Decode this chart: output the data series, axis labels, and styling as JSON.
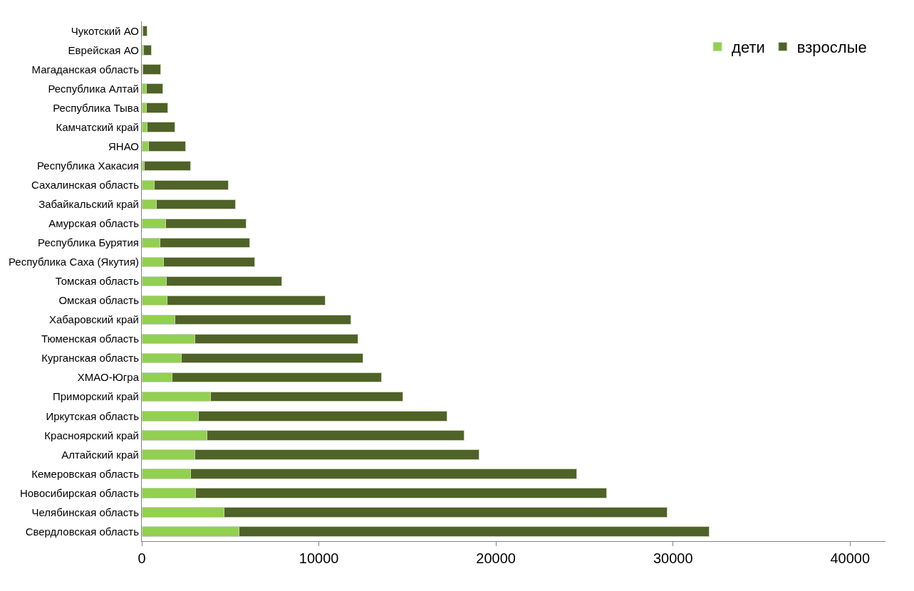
{
  "chart_data": {
    "type": "bar",
    "orientation": "horizontal",
    "stacked": true,
    "categories": [
      "Чукотский АО",
      "Еврейская АО",
      "Магаданская область",
      "Республика Алтай",
      "Республика Тыва",
      "Камчатский край",
      "ЯНАО",
      "Республика Хакасия",
      "Сахалинская область",
      "Забайкальский край",
      "Амурская область",
      "Республика Бурятия",
      "Республика Саха (Якутия)",
      "Томская область",
      "Омская область",
      "Хабаровский край",
      "Тюменская область",
      "Курганская область",
      "ХМАО-Югра",
      "Приморский край",
      "Иркутская область",
      "Красноярский край",
      "Алтайский край",
      "Кемеровская область",
      "Новосибирская область",
      "Челябинская область",
      "Свердловская область"
    ],
    "series": [
      {
        "name": "дети",
        "color": "#92d050",
        "values": [
          60,
          100,
          50,
          250,
          250,
          300,
          380,
          150,
          720,
          820,
          1360,
          1020,
          1240,
          1400,
          1420,
          1890,
          2990,
          2250,
          1690,
          3890,
          3180,
          3690,
          2980,
          2760,
          3020,
          4640,
          5490
        ]
      },
      {
        "name": "взрослые",
        "color": "#4f6228",
        "values": [
          240,
          430,
          1000,
          940,
          1200,
          1570,
          2100,
          2610,
          4170,
          4490,
          4550,
          5080,
          5120,
          6520,
          8950,
          9900,
          9220,
          10240,
          11840,
          10850,
          14060,
          14510,
          16050,
          21790,
          23220,
          25030,
          26560
        ]
      }
    ],
    "xlim": [
      0,
      42000
    ],
    "xticks": [
      0,
      10000,
      20000,
      30000,
      40000
    ],
    "grid": false,
    "legend": "top right"
  }
}
